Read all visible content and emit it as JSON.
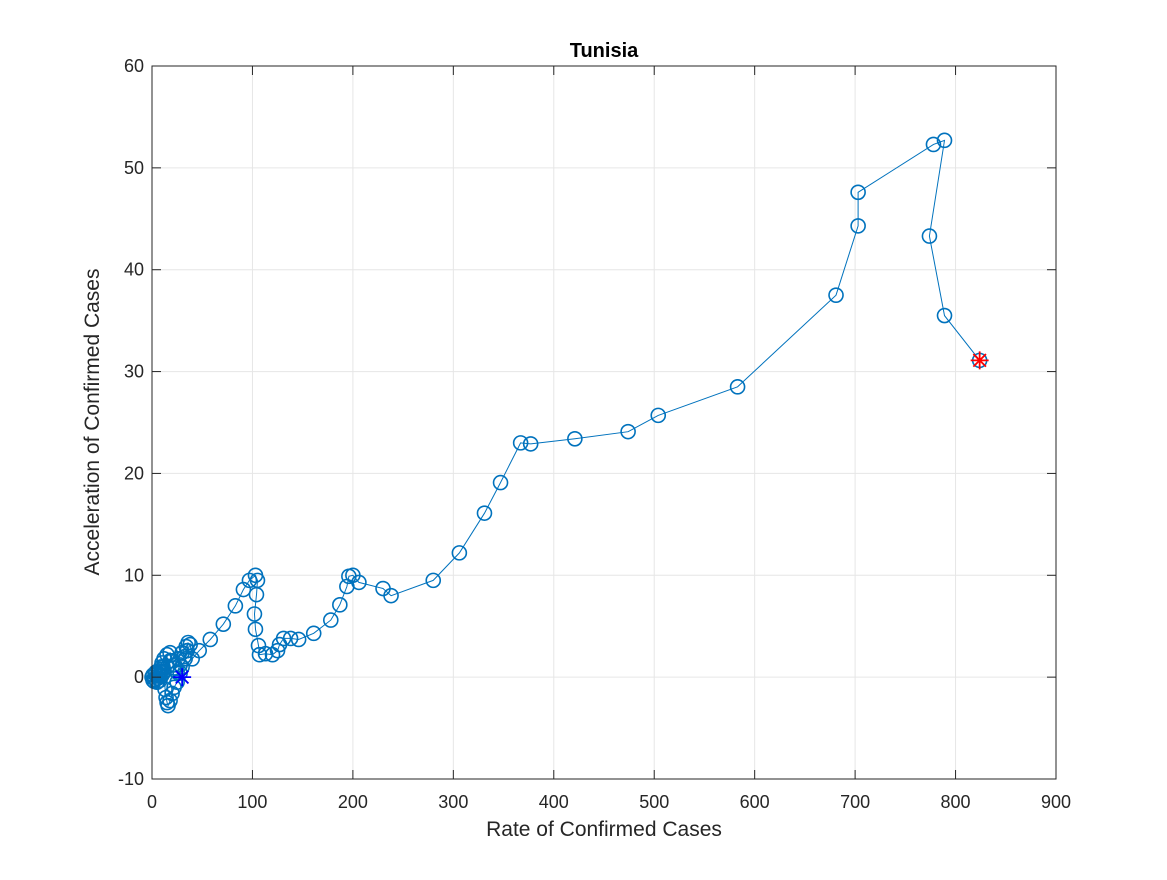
{
  "chart_data": {
    "type": "line",
    "title": "Tunisia",
    "xlabel": "Rate of Confirmed Cases",
    "ylabel": "Acceleration of Confirmed Cases",
    "xlim": [
      0,
      900
    ],
    "ylim": [
      -10,
      60
    ],
    "xticks": [
      0,
      100,
      200,
      300,
      400,
      500,
      600,
      700,
      800,
      900
    ],
    "yticks": [
      -10,
      0,
      10,
      20,
      30,
      40,
      50,
      60
    ],
    "xtick_labels": [
      "0",
      "100",
      "200",
      "300",
      "400",
      "500",
      "600",
      "700",
      "800",
      "900"
    ],
    "ytick_labels": [
      "-10",
      "0",
      "10",
      "20",
      "30",
      "40",
      "50",
      "60"
    ],
    "grid": true,
    "colors": {
      "series": "#0072BD",
      "start_marker": "#0000FF",
      "end_marker": "#FF0000",
      "grid": "#e6e6e6",
      "axis": "#262626"
    },
    "series": [
      {
        "marker": "circle",
        "x": [
          0,
          1,
          1,
          2,
          3,
          3,
          4,
          5,
          5,
          6,
          6,
          7,
          8,
          8,
          9,
          10,
          11,
          12,
          13,
          14,
          15,
          16,
          18,
          20,
          22,
          25,
          28,
          30,
          33,
          35,
          36,
          34,
          30,
          26,
          22,
          18,
          15,
          12,
          10,
          9,
          10,
          12,
          15,
          18,
          20,
          22,
          25,
          28,
          32,
          35,
          38,
          40,
          47,
          58,
          71,
          83,
          91,
          97,
          103,
          105,
          104,
          102,
          103,
          106,
          107,
          113,
          120,
          125,
          127,
          131,
          138,
          146,
          161,
          178,
          187,
          194,
          196,
          200,
          206,
          230,
          238,
          280,
          306,
          331,
          347,
          367,
          377,
          421,
          474,
          504,
          583,
          681,
          703,
          703,
          778,
          789,
          774,
          789,
          824
        ],
        "y": [
          0.0,
          -0.3,
          0.2,
          -0.4,
          0.3,
          -0.2,
          0.5,
          0.1,
          -0.5,
          0.4,
          -0.1,
          0.6,
          0.2,
          -0.3,
          0.5,
          0.8,
          1.0,
          0.6,
          -1.2,
          -2.0,
          -2.5,
          -2.8,
          -2.3,
          -1.6,
          -1.0,
          -0.5,
          0.4,
          1.0,
          1.8,
          2.6,
          3.4,
          3.0,
          2.4,
          1.8,
          1.2,
          1.6,
          1.0,
          0.5,
          0.2,
          1.0,
          1.4,
          1.8,
          2.2,
          2.4,
          1.6,
          0.9,
          0.5,
          1.2,
          2.0,
          2.6,
          3.2,
          1.8,
          2.6,
          3.7,
          5.2,
          7.0,
          8.6,
          9.5,
          10.0,
          9.5,
          8.1,
          6.2,
          4.7,
          3.1,
          2.2,
          2.3,
          2.2,
          2.6,
          3.2,
          3.8,
          3.8,
          3.7,
          4.3,
          5.6,
          7.1,
          8.9,
          9.9,
          10.0,
          9.3,
          8.7,
          8.0,
          9.5,
          12.2,
          16.1,
          19.1,
          23.0,
          22.9,
          23.4,
          24.1,
          25.7,
          28.5,
          37.5,
          44.3,
          47.6,
          52.3,
          52.7,
          43.3,
          35.5,
          31.1
        ]
      }
    ]
  }
}
